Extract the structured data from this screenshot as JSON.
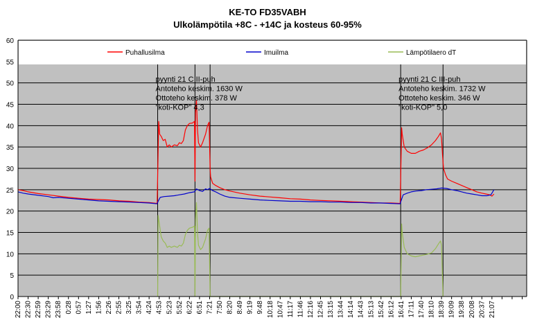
{
  "chart_data": {
    "type": "line",
    "title": "KE-TO FD35VABH",
    "subtitle": "Ulkolämpötila +8C - +14C ja kosteus 60-95%",
    "xlabel": "",
    "ylabel": "",
    "ylim": [
      0,
      60
    ],
    "yticks": [
      0,
      5,
      10,
      15,
      20,
      25,
      30,
      35,
      40,
      45,
      50,
      55,
      60
    ],
    "grid": true,
    "legend_position": "top",
    "x_ticks": [
      "22:00",
      "22:30",
      "22:59",
      "23:29",
      "23:58",
      "0:28",
      "0:57",
      "1:27",
      "1:56",
      "2:26",
      "2:55",
      "3:25",
      "3:54",
      "4:24",
      "4:53",
      "5:23",
      "5:52",
      "6:22",
      "6:51",
      "7:21",
      "7:50",
      "8:20",
      "8:49",
      "9:19",
      "9:48",
      "10:18",
      "10:47",
      "11:17",
      "11:46",
      "12:16",
      "12:45",
      "13:15",
      "13:44",
      "14:14",
      "14:43",
      "15:13",
      "15:42",
      "16:12",
      "16:41",
      "17:11",
      "17:40",
      "18:10",
      "18:39",
      "19:09",
      "19:38",
      "20:08",
      "20:37",
      "21:07"
    ],
    "series": [
      {
        "name": "Puhallusilma",
        "color": "#ff0000",
        "points": [
          [
            0,
            25
          ],
          [
            0.5,
            24.8
          ],
          [
            1,
            24.5
          ],
          [
            2,
            24.1
          ],
          [
            3,
            23.8
          ],
          [
            4,
            23.5
          ],
          [
            5,
            23.2
          ],
          [
            6,
            23
          ],
          [
            7,
            22.8
          ],
          [
            8,
            22.7
          ],
          [
            9,
            22.6
          ],
          [
            10,
            22.4
          ],
          [
            11,
            22.3
          ],
          [
            12,
            22.1
          ],
          [
            13,
            22
          ],
          [
            13.8,
            21.8
          ],
          [
            13.85,
            28
          ],
          [
            13.95,
            41
          ],
          [
            14.05,
            38
          ],
          [
            14.2,
            37.5
          ],
          [
            14.4,
            36.5
          ],
          [
            14.6,
            36.8
          ],
          [
            14.8,
            35
          ],
          [
            15,
            35.5
          ],
          [
            15.2,
            35
          ],
          [
            15.5,
            35.5
          ],
          [
            15.8,
            35.3
          ],
          [
            16,
            36
          ],
          [
            16.2,
            35.8
          ],
          [
            16.4,
            36.5
          ],
          [
            16.6,
            39
          ],
          [
            16.8,
            40
          ],
          [
            17,
            40.5
          ],
          [
            17.3,
            40.6
          ],
          [
            17.5,
            41
          ],
          [
            17.55,
            27
          ],
          [
            17.6,
            43
          ],
          [
            17.7,
            46
          ],
          [
            17.8,
            39
          ],
          [
            17.9,
            36
          ],
          [
            18.1,
            35
          ],
          [
            18.3,
            36
          ],
          [
            18.6,
            38
          ],
          [
            18.8,
            40
          ],
          [
            18.95,
            40.8
          ],
          [
            19.05,
            30
          ],
          [
            19.1,
            28
          ],
          [
            19.3,
            26.5
          ],
          [
            19.6,
            26
          ],
          [
            20,
            25.5
          ],
          [
            20.5,
            25
          ],
          [
            21,
            24.7
          ],
          [
            22,
            24.2
          ],
          [
            23,
            23.8
          ],
          [
            24,
            23.5
          ],
          [
            25,
            23.3
          ],
          [
            26,
            23.1
          ],
          [
            27,
            22.9
          ],
          [
            28,
            22.8
          ],
          [
            29,
            22.6
          ],
          [
            30,
            22.5
          ],
          [
            31,
            22.4
          ],
          [
            32,
            22.3
          ],
          [
            33,
            22.2
          ],
          [
            34,
            22.1
          ],
          [
            35,
            22
          ],
          [
            36,
            21.9
          ],
          [
            37,
            21.9
          ],
          [
            37.9,
            21.8
          ],
          [
            37.95,
            28
          ],
          [
            38.05,
            39.5
          ],
          [
            38.1,
            38
          ],
          [
            38.3,
            35
          ],
          [
            38.6,
            34
          ],
          [
            39,
            33.5
          ],
          [
            39.4,
            33.5
          ],
          [
            39.8,
            34
          ],
          [
            40.2,
            34.3
          ],
          [
            40.6,
            34.8
          ],
          [
            41,
            35.5
          ],
          [
            41.4,
            36.5
          ],
          [
            41.7,
            37.5
          ],
          [
            41.9,
            38.3
          ],
          [
            42,
            37
          ],
          [
            42.1,
            33
          ],
          [
            42.2,
            30
          ],
          [
            42.4,
            28.5
          ],
          [
            42.6,
            27.5
          ],
          [
            43,
            27
          ],
          [
            43.5,
            26.5
          ],
          [
            44,
            26
          ],
          [
            44.5,
            25.5
          ],
          [
            45,
            25
          ],
          [
            45.5,
            24.5
          ],
          [
            46,
            24.2
          ],
          [
            46.4,
            24
          ],
          [
            46.8,
            23.8
          ],
          [
            47,
            23.5
          ],
          [
            47.2,
            24
          ]
        ]
      },
      {
        "name": "Imuilma",
        "color": "#0000cc",
        "points": [
          [
            0,
            24.5
          ],
          [
            0.5,
            24.2
          ],
          [
            1,
            24
          ],
          [
            2,
            23.7
          ],
          [
            3,
            23.4
          ],
          [
            3.5,
            23.1
          ],
          [
            4,
            23.2
          ],
          [
            5,
            23
          ],
          [
            6,
            22.8
          ],
          [
            7,
            22.6
          ],
          [
            8,
            22.4
          ],
          [
            9,
            22.3
          ],
          [
            10,
            22.2
          ],
          [
            11,
            22.1
          ],
          [
            12,
            22
          ],
          [
            13,
            21.9
          ],
          [
            13.8,
            21.7
          ],
          [
            13.9,
            22.3
          ],
          [
            14.1,
            23.2
          ],
          [
            14.5,
            23.4
          ],
          [
            15,
            23.5
          ],
          [
            15.5,
            23.6
          ],
          [
            16,
            23.8
          ],
          [
            16.5,
            24
          ],
          [
            17,
            24.3
          ],
          [
            17.5,
            24.5
          ],
          [
            17.7,
            25.2
          ],
          [
            18,
            24.8
          ],
          [
            18.3,
            24.6
          ],
          [
            18.6,
            25.2
          ],
          [
            18.8,
            25
          ],
          [
            19,
            25.3
          ],
          [
            19.3,
            24.8
          ],
          [
            19.6,
            24.5
          ],
          [
            20,
            24
          ],
          [
            20.5,
            23.5
          ],
          [
            21,
            23.2
          ],
          [
            22,
            23
          ],
          [
            23,
            22.8
          ],
          [
            24,
            22.6
          ],
          [
            25,
            22.5
          ],
          [
            26,
            22.4
          ],
          [
            27,
            22.3
          ],
          [
            28,
            22.3
          ],
          [
            29,
            22.2
          ],
          [
            30,
            22.2
          ],
          [
            31,
            22.1
          ],
          [
            32,
            22.1
          ],
          [
            33,
            22
          ],
          [
            34,
            22
          ],
          [
            35,
            21.9
          ],
          [
            36,
            21.9
          ],
          [
            37,
            21.8
          ],
          [
            37.9,
            21.7
          ],
          [
            38,
            22.5
          ],
          [
            38.2,
            23.8
          ],
          [
            38.6,
            24.2
          ],
          [
            39,
            24.5
          ],
          [
            39.5,
            24.7
          ],
          [
            40,
            24.8
          ],
          [
            40.5,
            25
          ],
          [
            41,
            25.1
          ],
          [
            41.5,
            25.2
          ],
          [
            42,
            25.4
          ],
          [
            42.5,
            25.3
          ],
          [
            43,
            25
          ],
          [
            43.5,
            24.8
          ],
          [
            44,
            24.5
          ],
          [
            44.5,
            24.2
          ],
          [
            45,
            24
          ],
          [
            45.5,
            23.8
          ],
          [
            46,
            23.6
          ],
          [
            46.5,
            23.6
          ],
          [
            46.9,
            23.8
          ],
          [
            47.2,
            25
          ]
        ]
      },
      {
        "name": "Lämpötilaero dT",
        "color": "#99bb55",
        "points": [
          [
            13.85,
            0
          ],
          [
            13.9,
            19
          ],
          [
            14.05,
            16.5
          ],
          [
            14.2,
            14
          ],
          [
            14.4,
            13
          ],
          [
            14.6,
            12.5
          ],
          [
            14.8,
            11.5
          ],
          [
            15,
            11.8
          ],
          [
            15.2,
            11.5
          ],
          [
            15.5,
            11.8
          ],
          [
            15.8,
            11.5
          ],
          [
            16,
            12
          ],
          [
            16.2,
            11.8
          ],
          [
            16.4,
            12.5
          ],
          [
            16.6,
            14.5
          ],
          [
            16.8,
            15.5
          ],
          [
            17,
            16
          ],
          [
            17.3,
            16.2
          ],
          [
            17.5,
            16.5
          ],
          [
            17.55,
            0
          ],
          [
            17.6,
            18
          ],
          [
            17.7,
            22
          ],
          [
            17.8,
            15
          ],
          [
            17.9,
            12
          ],
          [
            18.1,
            11
          ],
          [
            18.3,
            11.5
          ],
          [
            18.6,
            13.5
          ],
          [
            18.8,
            15.5
          ],
          [
            18.95,
            16
          ],
          [
            19.05,
            0
          ],
          [
            37.95,
            0
          ],
          [
            38.05,
            17
          ],
          [
            38.1,
            15
          ],
          [
            38.3,
            11.5
          ],
          [
            38.6,
            10
          ],
          [
            39,
            9.5
          ],
          [
            39.4,
            9.3
          ],
          [
            39.8,
            9.5
          ],
          [
            40.2,
            9.7
          ],
          [
            40.6,
            9.9
          ],
          [
            41,
            10.2
          ],
          [
            41.4,
            11.2
          ],
          [
            41.7,
            12.3
          ],
          [
            41.9,
            13
          ],
          [
            42,
            12
          ],
          [
            42.15,
            0
          ]
        ]
      }
    ],
    "annotations": [
      {
        "at": 13.85,
        "lines": [
          "pyynti 21 C II-puh",
          "Antoteho keskim. 1630 W",
          "Ottoteho keskim. 378 W",
          "\"koti-KOP\" 4,3"
        ]
      },
      {
        "at": 37.95,
        "lines": [
          "pyynti 21 C III-puh",
          "Antoteho keskim. 1732 W",
          "Ottoteho keskim. 346 W",
          "\"koti-KOP\" 5,0"
        ]
      }
    ],
    "vertical_markers": [
      13.85,
      17.55,
      19.05,
      37.95,
      42.15
    ]
  }
}
